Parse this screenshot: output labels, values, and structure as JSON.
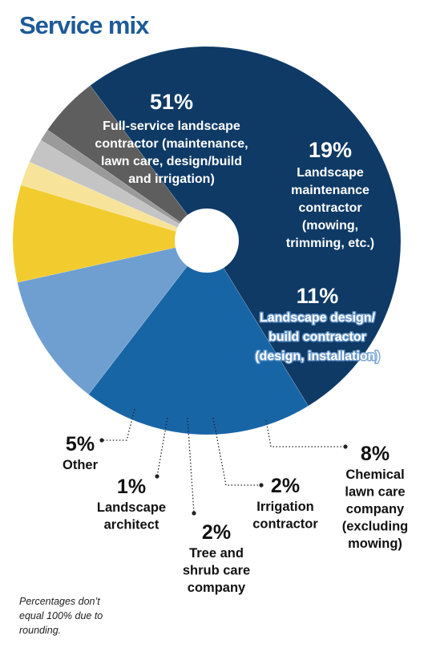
{
  "title": "Service mix",
  "note": "Percentages don’t equal 100% due to rounding.",
  "chart_data": {
    "type": "pie",
    "donut": true,
    "slices": [
      {
        "value": 51,
        "pct_label": "51%",
        "lines": [
          "Full-service landscape",
          "contractor (maintenance,",
          "lawn care, design/build",
          "and irrigation)"
        ],
        "color": "#0f3a66"
      },
      {
        "value": 19,
        "pct_label": "19%",
        "lines": [
          "Landscape",
          "maintenance",
          "contractor",
          "(mowing,",
          "trimming, etc.)"
        ],
        "color": "#1865a6"
      },
      {
        "value": 11,
        "pct_label": "11%",
        "lines": [
          "Landscape design/",
          "build contractor",
          "(design, installation)"
        ],
        "color": "#6f9fd0"
      },
      {
        "value": 8,
        "pct_label": "8%",
        "lines": [
          "Chemical",
          "lawn care",
          "company",
          "(excluding",
          "mowing)"
        ],
        "color": "#f2cb2e"
      },
      {
        "value": 2,
        "pct_label": "2%",
        "lines": [
          "Irrigation",
          "contractor"
        ],
        "color": "#f7e39a"
      },
      {
        "value": 2,
        "pct_label": "2%",
        "lines": [
          "Tree and",
          "shrub care",
          "company"
        ],
        "color": "#c4c4c4"
      },
      {
        "value": 1,
        "pct_label": "1%",
        "lines": [
          "Landscape",
          "architect"
        ],
        "color": "#9a9a9a"
      },
      {
        "value": 5,
        "pct_label": "5%",
        "lines": [
          "Other"
        ],
        "color": "#5e5e5e"
      }
    ]
  }
}
